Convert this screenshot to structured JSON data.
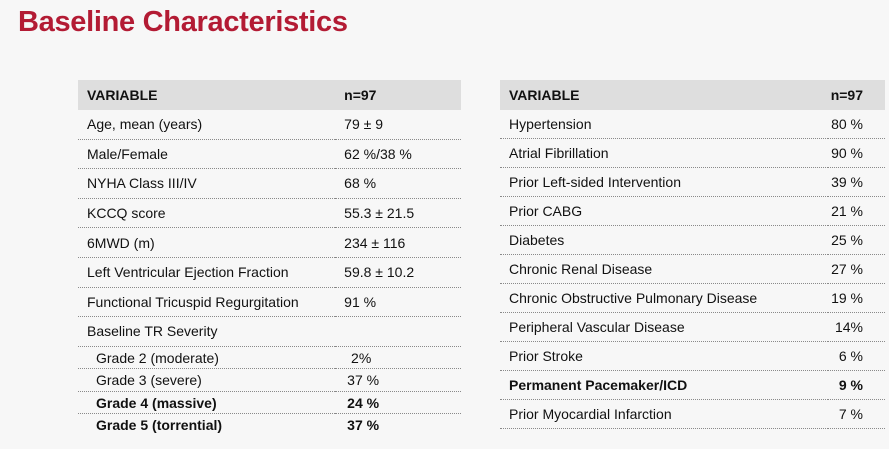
{
  "page": {
    "title": "Baseline Characteristics"
  },
  "left_table": {
    "header": {
      "variable": "VARIABLE",
      "n": "n=97"
    },
    "rows": [
      {
        "label": "Age, mean (years)",
        "value": "79 ± 9"
      },
      {
        "label": "Male/Female",
        "value": "62 %/38 %"
      },
      {
        "label": "NYHA Class III/IV",
        "value": "68 %"
      },
      {
        "label": "KCCQ score",
        "value": "55.3  ± 21.5"
      },
      {
        "label": "6MWD (m)",
        "value": "234 ± 116"
      },
      {
        "label": "Left Ventricular Ejection Fraction",
        "value": "59.8 ± 10.2"
      },
      {
        "label": "Functional Tricuspid Regurgitation",
        "value": "91 %"
      },
      {
        "label": "Baseline TR Severity",
        "value": ""
      }
    ],
    "grades": [
      {
        "label": "Grade 2 (moderate)",
        "value": " 2%"
      },
      {
        "label": "Grade 3 (severe)",
        "value": "37 %"
      },
      {
        "label": "Grade 4 (massive)",
        "value": "24 %"
      },
      {
        "label": "Grade 5 (torrential)",
        "value": "37 %"
      }
    ]
  },
  "right_table": {
    "header": {
      "variable": "VARIABLE",
      "n": "n=97"
    },
    "rows": [
      {
        "label": "Hypertension",
        "value": "80 %"
      },
      {
        "label": "Atrial Fibrillation",
        "value": "90 %"
      },
      {
        "label": "Prior Left-sided Intervention",
        "value": "39 %"
      },
      {
        "label": "Prior CABG",
        "value": "21 %"
      },
      {
        "label": "Diabetes",
        "value": "25 %"
      },
      {
        "label": "Chronic Renal Disease",
        "value": "27 %"
      },
      {
        "label": "Chronic Obstructive Pulmonary Disease",
        "value": "19 %"
      },
      {
        "label": "Peripheral Vascular Disease",
        "value": "14%"
      },
      {
        "label": "Prior Stroke",
        "value": "6 %"
      },
      {
        "label": "Permanent Pacemaker/ICD",
        "value": "9 %"
      },
      {
        "label": "Prior Myocardial Infarction",
        "value": "7 %"
      }
    ]
  },
  "colors": {
    "title": "#b31b34",
    "header_bg": "#dedede",
    "page_bg": "#f7f7f7"
  }
}
